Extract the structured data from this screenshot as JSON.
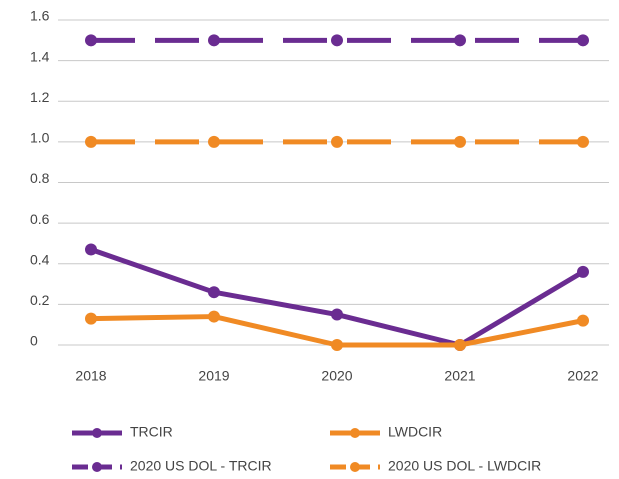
{
  "chart_data": {
    "type": "line",
    "categories": [
      "2018",
      "2019",
      "2020",
      "2021",
      "2022"
    ],
    "series": [
      {
        "name": "TRCIR",
        "color": "#6a2c91",
        "dashed": false,
        "values": [
          0.47,
          0.26,
          0.15,
          0,
          0.36
        ]
      },
      {
        "name": "LWDCIR",
        "color": "#f08a24",
        "dashed": false,
        "values": [
          0.13,
          0.14,
          0,
          0,
          0.12
        ]
      },
      {
        "name": "2020 US DOL - TRCIR",
        "color": "#6a2c91",
        "dashed": true,
        "values": [
          1.5,
          1.5,
          1.5,
          1.5,
          1.5
        ]
      },
      {
        "name": "2020 US DOL - LWDCIR",
        "color": "#f08a24",
        "dashed": true,
        "values": [
          1,
          1,
          1,
          1,
          1
        ]
      }
    ],
    "ylim": [
      0,
      1.6
    ],
    "yticks": [
      0,
      0.2,
      0.4,
      0.6,
      0.8,
      {
        "value": 1,
        "label": "1.0"
      },
      1.2,
      1.4,
      1.6
    ],
    "grid": true,
    "legend": "bottom"
  }
}
